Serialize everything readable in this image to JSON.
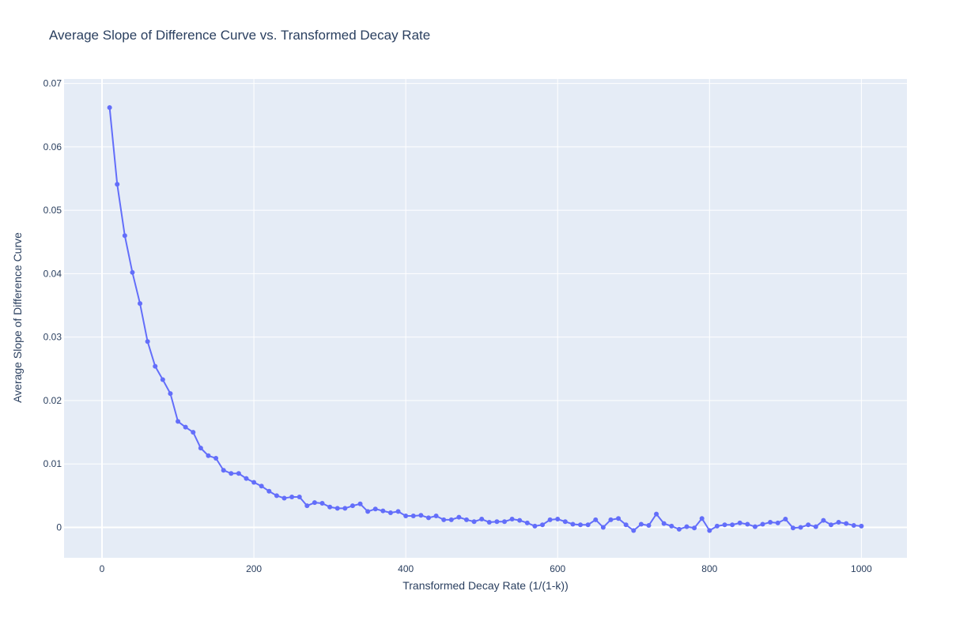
{
  "chart_data": {
    "type": "line",
    "title": "Average Slope of Difference Curve vs. Transformed Decay Rate",
    "xlabel": "Transformed Decay Rate (1/(1-k))",
    "ylabel": "Average Slope of Difference Curve",
    "xlim": [
      -50,
      1060
    ],
    "ylim": [
      -0.0048,
      0.0707
    ],
    "x_ticks": [
      0,
      200,
      400,
      600,
      800,
      1000
    ],
    "y_ticks": [
      0,
      0.01,
      0.02,
      0.03,
      0.04,
      0.05,
      0.06,
      0.07
    ],
    "x_tick_labels": [
      "0",
      "200",
      "400",
      "600",
      "800",
      "1000"
    ],
    "y_tick_labels": [
      "0",
      "0.01",
      "0.02",
      "0.03",
      "0.04",
      "0.05",
      "0.06",
      "0.07"
    ],
    "grid": true,
    "legend": "none",
    "colors": {
      "line": "#636efa",
      "plot_bg": "#e5ecf6",
      "grid": "#ffffff",
      "text": "#2a3f5f"
    },
    "series": [
      {
        "x": [
          10,
          20,
          30,
          40,
          50,
          60,
          70,
          80,
          90,
          100,
          110,
          120,
          130,
          140,
          150,
          160,
          170,
          180,
          190,
          200,
          210,
          220,
          230,
          240,
          250,
          260,
          270,
          280,
          290,
          300,
          310,
          320,
          330,
          340,
          350,
          360,
          370,
          380,
          390,
          400,
          410,
          420,
          430,
          440,
          450,
          460,
          470,
          480,
          490,
          500,
          510,
          520,
          530,
          540,
          550,
          560,
          570,
          580,
          590,
          600,
          610,
          620,
          630,
          640,
          650,
          660,
          670,
          680,
          690,
          700,
          710,
          720,
          730,
          740,
          750,
          760,
          770,
          780,
          790,
          800,
          810,
          820,
          830,
          840,
          850,
          860,
          870,
          880,
          890,
          900,
          910,
          920,
          930,
          940,
          950,
          960,
          970,
          980,
          990,
          1000
        ],
        "y": [
          0.0662,
          0.0541,
          0.046,
          0.0402,
          0.0353,
          0.0293,
          0.0254,
          0.0233,
          0.0211,
          0.0167,
          0.0158,
          0.015,
          0.0125,
          0.0113,
          0.0109,
          0.009,
          0.0085,
          0.0085,
          0.0077,
          0.0071,
          0.0065,
          0.0057,
          0.005,
          0.0046,
          0.0048,
          0.0048,
          0.0034,
          0.0039,
          0.0038,
          0.0032,
          0.003,
          0.003,
          0.0034,
          0.0037,
          0.0025,
          0.0029,
          0.0026,
          0.0023,
          0.0025,
          0.0018,
          0.0018,
          0.0019,
          0.0015,
          0.0018,
          0.0012,
          0.0012,
          0.0016,
          0.0012,
          0.0009,
          0.0013,
          0.0008,
          0.0009,
          0.0009,
          0.0013,
          0.0011,
          0.0007,
          0.0002,
          0.0004,
          0.0012,
          0.0013,
          0.0009,
          0.0005,
          0.0004,
          0.0004,
          0.0012,
          0.0,
          0.0012,
          0.0014,
          0.0004,
          -0.0005,
          0.0005,
          0.0003,
          0.0021,
          0.0006,
          0.0002,
          -0.0003,
          0.0001,
          -0.0001,
          0.0014,
          -0.0005,
          0.0002,
          0.0004,
          0.0004,
          0.0007,
          0.0005,
          0.0001,
          0.0005,
          0.0008,
          0.0007,
          0.0013,
          -0.0001,
          0.0,
          0.0004,
          0.0001,
          0.0011,
          0.0004,
          0.0008,
          0.0006,
          0.0003,
          0.0002
        ]
      }
    ]
  }
}
